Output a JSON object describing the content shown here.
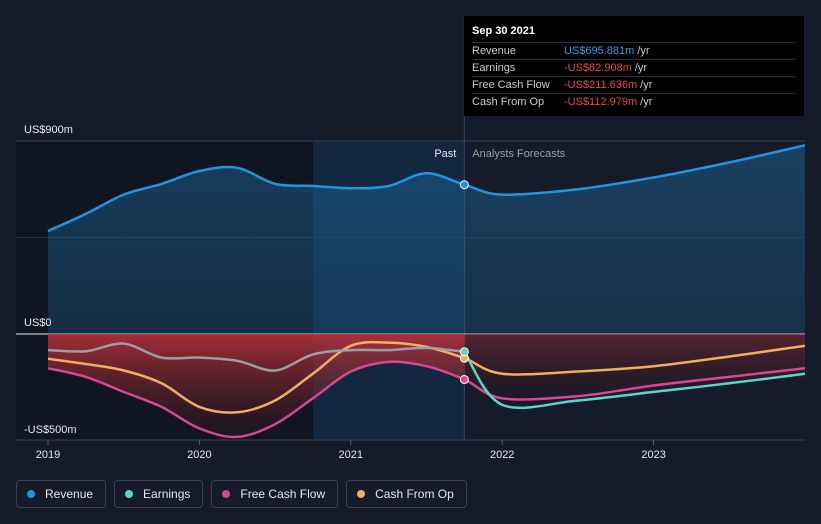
{
  "tooltip": {
    "date": "Sep 30 2021",
    "rows": [
      {
        "label": "Revenue",
        "value": "US$695.881m",
        "unit": "/yr",
        "color": "#3b9ee8"
      },
      {
        "label": "Earnings",
        "value": "-US$82.908m",
        "unit": "/yr",
        "color": "#e8484f"
      },
      {
        "label": "Free Cash Flow",
        "value": "-US$211.636m",
        "unit": "/yr",
        "color": "#e8484f"
      },
      {
        "label": "Cash From Op",
        "value": "-US$112.979m",
        "unit": "/yr",
        "color": "#e8484f"
      }
    ]
  },
  "colors": {
    "background": "#151b28",
    "revenue": "#2394df",
    "earnings": "#58d6c9",
    "free_cash_flow": "#d44a8e",
    "cash_from_op": "#f0ae63"
  },
  "chart_data": {
    "type": "line",
    "y_labels": {
      "top": "US$900m",
      "zero": "US$0",
      "bottom": "-US$500m"
    },
    "ylim": [
      -500,
      900
    ],
    "xlim": [
      2019.0,
      2024.0
    ],
    "x_ticks": [
      "2019",
      "2020",
      "2021",
      "2022",
      "2023"
    ],
    "past_label": "Past",
    "forecast_label": "Analysts Forecasts",
    "past_end": 2021.75,
    "highlight_start": 2020.75,
    "series": [
      {
        "name": "Revenue",
        "color": "#2394df",
        "fill": true,
        "x": [
          2019.0,
          2019.25,
          2019.5,
          2019.75,
          2020.0,
          2020.25,
          2020.5,
          2020.75,
          2021.0,
          2021.25,
          2021.5,
          2021.75,
          2022.0,
          2022.5,
          2023.0,
          2023.5,
          2024.0
        ],
        "y": [
          480,
          560,
          650,
          700,
          760,
          775,
          700,
          690,
          680,
          690,
          750,
          696,
          650,
          675,
          730,
          800,
          880
        ]
      },
      {
        "name": "Earnings",
        "color": "#58d6c9",
        "x": [
          2019.0,
          2019.25,
          2019.5,
          2019.75,
          2020.0,
          2020.25,
          2020.5,
          2020.75,
          2021.0,
          2021.25,
          2021.5,
          2021.75,
          2022.0,
          2022.5,
          2023.0,
          2023.5,
          2024.0
        ],
        "y": [
          -75,
          -80,
          -45,
          -110,
          -110,
          -125,
          -170,
          -95,
          -75,
          -75,
          -65,
          -83,
          -330,
          -310,
          -270,
          -230,
          -185
        ]
      },
      {
        "name": "Free Cash Flow",
        "color": "#d44a8e",
        "x": [
          2019.0,
          2019.25,
          2019.5,
          2019.75,
          2020.0,
          2020.25,
          2020.5,
          2020.75,
          2021.0,
          2021.25,
          2021.5,
          2021.75,
          2022.0,
          2022.5,
          2023.0,
          2023.5,
          2024.0
        ],
        "y": [
          -160,
          -200,
          -270,
          -340,
          -440,
          -480,
          -420,
          -300,
          -175,
          -130,
          -150,
          -212,
          -300,
          -290,
          -240,
          -200,
          -160
        ]
      },
      {
        "name": "Cash From Op",
        "color": "#f0ae63",
        "x": [
          2019.0,
          2019.25,
          2019.5,
          2019.75,
          2020.0,
          2020.25,
          2020.5,
          2020.75,
          2021.0,
          2021.25,
          2021.5,
          2021.75,
          2022.0,
          2022.5,
          2023.0,
          2023.5,
          2024.0
        ],
        "y": [
          -115,
          -140,
          -170,
          -230,
          -340,
          -365,
          -310,
          -185,
          -55,
          -40,
          -60,
          -113,
          -185,
          -175,
          -150,
          -105,
          -55
        ]
      }
    ]
  },
  "legend": {
    "items": [
      {
        "label": "Revenue",
        "color": "#2394df"
      },
      {
        "label": "Earnings",
        "color": "#58d6c9"
      },
      {
        "label": "Free Cash Flow",
        "color": "#d44a8e"
      },
      {
        "label": "Cash From Op",
        "color": "#f0ae63"
      }
    ]
  }
}
